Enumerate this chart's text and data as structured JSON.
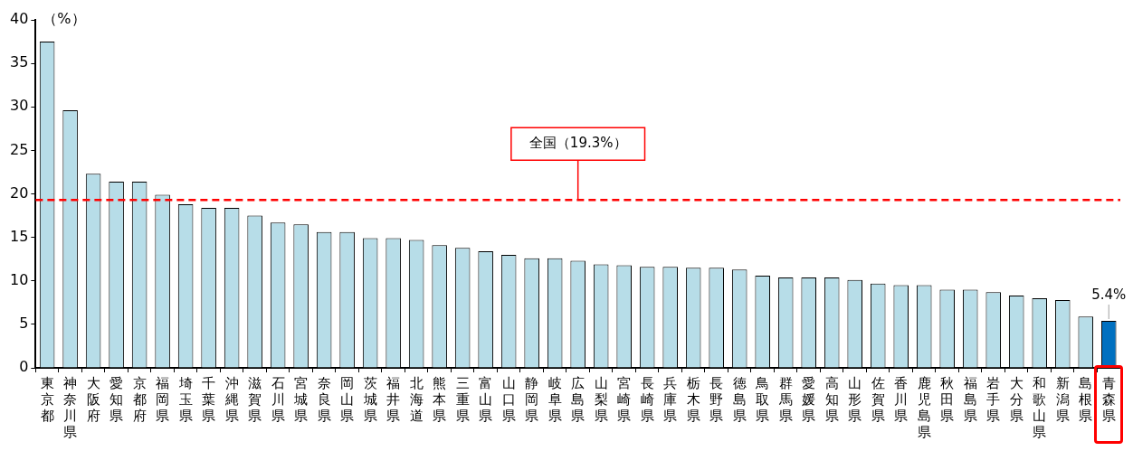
{
  "chart_data": {
    "type": "bar",
    "ylabel": "（%）",
    "categories": [
      "東京都",
      "神奈川県",
      "大阪府",
      "愛知県",
      "京都府",
      "福岡県",
      "埼玉県",
      "千葉県",
      "沖縄県",
      "滋賀県",
      "石川県",
      "宮城県",
      "奈良県",
      "岡山県",
      "茨城県",
      "福井県",
      "北海道",
      "熊本県",
      "三重県",
      "富山県",
      "山口県",
      "静岡県",
      "岐阜県",
      "広島県",
      "山梨県",
      "宮崎県",
      "長崎県",
      "兵庫県",
      "栃木県",
      "長野県",
      "徳島県",
      "鳥取県",
      "群馬県",
      "愛媛県",
      "高知県",
      "山形県",
      "佐賀県",
      "香川県",
      "鹿児島県",
      "秋田県",
      "福島県",
      "岩手県",
      "大分県",
      "和歌山県",
      "新潟県",
      "島根県",
      "青森県"
    ],
    "values": [
      37.5,
      29.6,
      22.3,
      21.4,
      21.4,
      19.9,
      18.8,
      18.4,
      18.4,
      17.5,
      16.7,
      16.5,
      15.6,
      15.6,
      14.9,
      14.9,
      14.7,
      14.1,
      13.8,
      13.4,
      13.0,
      12.6,
      12.6,
      12.3,
      11.9,
      11.8,
      11.6,
      11.6,
      11.5,
      11.5,
      11.3,
      10.6,
      10.4,
      10.4,
      10.4,
      10.1,
      9.7,
      9.5,
      9.5,
      9.0,
      9.0,
      8.7,
      8.3,
      8.0,
      7.8,
      5.9,
      5.4
    ],
    "colors": [
      "#b7dde8",
      "#b7dde8",
      "#b7dde8",
      "#b7dde8",
      "#b7dde8",
      "#b7dde8",
      "#b7dde8",
      "#b7dde8",
      "#b7dde8",
      "#b7dde8",
      "#b7dde8",
      "#b7dde8",
      "#b7dde8",
      "#b7dde8",
      "#b7dde8",
      "#b7dde8",
      "#b7dde8",
      "#b7dde8",
      "#b7dde8",
      "#b7dde8",
      "#b7dde8",
      "#b7dde8",
      "#b7dde8",
      "#b7dde8",
      "#b7dde8",
      "#b7dde8",
      "#b7dde8",
      "#b7dde8",
      "#b7dde8",
      "#b7dde8",
      "#b7dde8",
      "#b7dde8",
      "#b7dde8",
      "#b7dde8",
      "#b7dde8",
      "#b7dde8",
      "#b7dde8",
      "#b7dde8",
      "#b7dde8",
      "#b7dde8",
      "#b7dde8",
      "#b7dde8",
      "#b7dde8",
      "#b7dde8",
      "#b7dde8",
      "#b7dde8",
      "#0070c0"
    ],
    "value_labels": [
      null,
      null,
      null,
      null,
      null,
      null,
      null,
      null,
      null,
      null,
      null,
      null,
      null,
      null,
      null,
      null,
      null,
      null,
      null,
      null,
      null,
      null,
      null,
      null,
      null,
      null,
      null,
      null,
      null,
      null,
      null,
      null,
      null,
      null,
      null,
      null,
      null,
      null,
      null,
      null,
      null,
      null,
      null,
      null,
      null,
      null,
      "5.4%"
    ],
    "ylim": [
      0,
      40
    ],
    "yticks": [
      0,
      5,
      10,
      15,
      20,
      25,
      30,
      35,
      40
    ],
    "ref_lines": [
      {
        "axis": "y",
        "value": 19.3,
        "label": "全国（19.3%）",
        "color": "#ff0000",
        "line_style": "dashed"
      }
    ],
    "grid": false,
    "legend": false
  }
}
